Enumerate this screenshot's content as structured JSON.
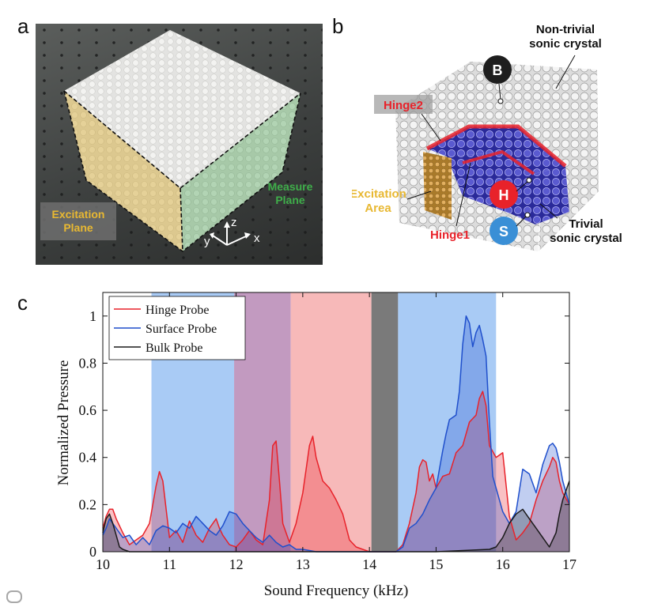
{
  "panel_labels": {
    "a": "a",
    "b": "b",
    "c": "c"
  },
  "panel_a": {
    "excitation_label": "Excitation\nPlane",
    "measure_label": "Measure\nPlane",
    "axes": {
      "x": "x",
      "y": "y",
      "z": "z"
    }
  },
  "panel_b": {
    "nontrivial_label": "Non-trivial\nsonic crystal",
    "trivial_label": "Trivial\nsonic crystal",
    "hinge2_label": "Hinge2",
    "hinge1_label": "Hinge1",
    "excitation_label": "Excitation\nArea",
    "probe_b": "B",
    "probe_h": "H",
    "probe_s": "S"
  },
  "colors": {
    "hinge": "#e8222a",
    "surface": "#1f4fcc",
    "bulk": "#1a1a1a",
    "band_blue": "#a9cbf5",
    "band_purple": "#c29ac0",
    "band_pink": "#f7b9b9",
    "band_gray": "#7a7a7a",
    "excitation_yellow": "#e8b832",
    "measure_green": "#3fae4a"
  },
  "chart_data": {
    "type": "line",
    "title": "",
    "xlabel": "Sound Frequency (kHz)",
    "ylabel": "Normalized Pressure",
    "xlim": [
      10,
      17
    ],
    "ylim": [
      0,
      1.1
    ],
    "xticks": [
      "10",
      "11",
      "12",
      "13",
      "14",
      "15",
      "16",
      "17"
    ],
    "yticks": [
      "0",
      "0.2",
      "0.4",
      "0.6",
      "0.8",
      "1"
    ],
    "ytick_values": [
      0,
      0.2,
      0.4,
      0.6,
      0.8,
      1.0
    ],
    "xtick_values": [
      10,
      11,
      12,
      13,
      14,
      15,
      16,
      17
    ],
    "legend": [
      "Hinge Probe",
      "Surface Probe",
      "Bulk Probe"
    ],
    "legend_position": "top-left",
    "bands": [
      {
        "from": 10.73,
        "to": 11.97,
        "color": "band_blue"
      },
      {
        "from": 11.97,
        "to": 12.82,
        "color": "band_purple"
      },
      {
        "from": 12.82,
        "to": 14.03,
        "color": "band_pink"
      },
      {
        "from": 14.03,
        "to": 14.43,
        "color": "band_gray"
      },
      {
        "from": 14.43,
        "to": 15.9,
        "color": "band_blue"
      }
    ],
    "series": [
      {
        "name": "Hinge Probe",
        "color": "hinge",
        "x": [
          10.0,
          10.05,
          10.1,
          10.15,
          10.2,
          10.3,
          10.4,
          10.5,
          10.6,
          10.7,
          10.75,
          10.8,
          10.85,
          10.9,
          10.95,
          11.0,
          11.1,
          11.2,
          11.3,
          11.4,
          11.5,
          11.6,
          11.7,
          11.75,
          11.8,
          11.9,
          12.0,
          12.1,
          12.2,
          12.3,
          12.4,
          12.5,
          12.55,
          12.6,
          12.65,
          12.7,
          12.8,
          12.9,
          13.0,
          13.1,
          13.15,
          13.2,
          13.3,
          13.4,
          13.5,
          13.6,
          13.7,
          13.8,
          13.9,
          14.0,
          14.1,
          14.2,
          14.3,
          14.4,
          14.5,
          14.6,
          14.7,
          14.75,
          14.8,
          14.85,
          14.9,
          14.95,
          15.0,
          15.1,
          15.2,
          15.3,
          15.4,
          15.5,
          15.6,
          15.65,
          15.7,
          15.75,
          15.8,
          15.9,
          16.0,
          16.1,
          16.2,
          16.3,
          16.4,
          16.5,
          16.6,
          16.7,
          16.75,
          16.8,
          16.85,
          16.9,
          17.0
        ],
        "y": [
          0.1,
          0.15,
          0.18,
          0.18,
          0.14,
          0.08,
          0.03,
          0.05,
          0.07,
          0.12,
          0.2,
          0.28,
          0.34,
          0.3,
          0.18,
          0.06,
          0.09,
          0.04,
          0.13,
          0.07,
          0.04,
          0.1,
          0.14,
          0.1,
          0.07,
          0.03,
          0.02,
          0.05,
          0.09,
          0.05,
          0.03,
          0.22,
          0.45,
          0.47,
          0.3,
          0.12,
          0.04,
          0.12,
          0.25,
          0.45,
          0.49,
          0.4,
          0.3,
          0.27,
          0.22,
          0.16,
          0.05,
          0.02,
          0.01,
          0.0,
          0.0,
          0.0,
          0.0,
          0.0,
          0.03,
          0.12,
          0.25,
          0.36,
          0.39,
          0.38,
          0.3,
          0.33,
          0.27,
          0.32,
          0.33,
          0.42,
          0.45,
          0.55,
          0.58,
          0.65,
          0.68,
          0.62,
          0.45,
          0.4,
          0.42,
          0.15,
          0.05,
          0.08,
          0.12,
          0.22,
          0.3,
          0.36,
          0.4,
          0.38,
          0.3,
          0.25,
          0.2
        ]
      },
      {
        "name": "Surface Probe",
        "color": "surface",
        "x": [
          10.0,
          10.05,
          10.1,
          10.15,
          10.2,
          10.3,
          10.4,
          10.5,
          10.6,
          10.7,
          10.8,
          10.9,
          11.0,
          11.1,
          11.2,
          11.3,
          11.4,
          11.5,
          11.6,
          11.7,
          11.8,
          11.9,
          12.0,
          12.1,
          12.2,
          12.3,
          12.4,
          12.5,
          12.6,
          12.7,
          12.8,
          12.9,
          13.0,
          13.2,
          13.4,
          13.6,
          13.8,
          14.0,
          14.2,
          14.4,
          14.5,
          14.6,
          14.7,
          14.8,
          14.9,
          15.0,
          15.1,
          15.15,
          15.2,
          15.3,
          15.35,
          15.4,
          15.45,
          15.5,
          15.55,
          15.6,
          15.65,
          15.7,
          15.75,
          15.8,
          15.85,
          15.9,
          16.0,
          16.1,
          16.2,
          16.3,
          16.4,
          16.5,
          16.6,
          16.7,
          16.75,
          16.8,
          16.85,
          16.9,
          17.0
        ],
        "y": [
          0.07,
          0.1,
          0.14,
          0.12,
          0.1,
          0.06,
          0.07,
          0.03,
          0.06,
          0.03,
          0.09,
          0.11,
          0.1,
          0.08,
          0.12,
          0.1,
          0.15,
          0.12,
          0.09,
          0.07,
          0.11,
          0.17,
          0.16,
          0.12,
          0.09,
          0.06,
          0.04,
          0.07,
          0.04,
          0.02,
          0.03,
          0.01,
          0.01,
          0.0,
          0.0,
          0.0,
          0.0,
          0.0,
          0.0,
          0.0,
          0.02,
          0.1,
          0.12,
          0.16,
          0.22,
          0.27,
          0.43,
          0.5,
          0.56,
          0.58,
          0.68,
          0.88,
          1.0,
          0.97,
          0.87,
          0.93,
          0.96,
          0.9,
          0.83,
          0.55,
          0.32,
          0.27,
          0.17,
          0.12,
          0.17,
          0.35,
          0.33,
          0.25,
          0.37,
          0.45,
          0.46,
          0.44,
          0.38,
          0.3,
          0.2
        ]
      },
      {
        "name": "Bulk Probe",
        "color": "bulk",
        "x": [
          10.0,
          10.05,
          10.1,
          10.15,
          10.2,
          10.25,
          10.3,
          10.4,
          10.6,
          11.0,
          12.0,
          13.0,
          14.0,
          15.0,
          15.8,
          15.9,
          16.0,
          16.1,
          16.2,
          16.3,
          16.4,
          16.5,
          16.6,
          16.7,
          16.8,
          16.85,
          16.9,
          16.95,
          17.0
        ],
        "y": [
          0.08,
          0.14,
          0.16,
          0.12,
          0.07,
          0.02,
          0.01,
          0.0,
          0.0,
          0.0,
          0.0,
          0.0,
          0.0,
          0.0,
          0.01,
          0.02,
          0.06,
          0.12,
          0.16,
          0.18,
          0.14,
          0.1,
          0.06,
          0.02,
          0.08,
          0.16,
          0.22,
          0.26,
          0.3
        ]
      }
    ]
  }
}
